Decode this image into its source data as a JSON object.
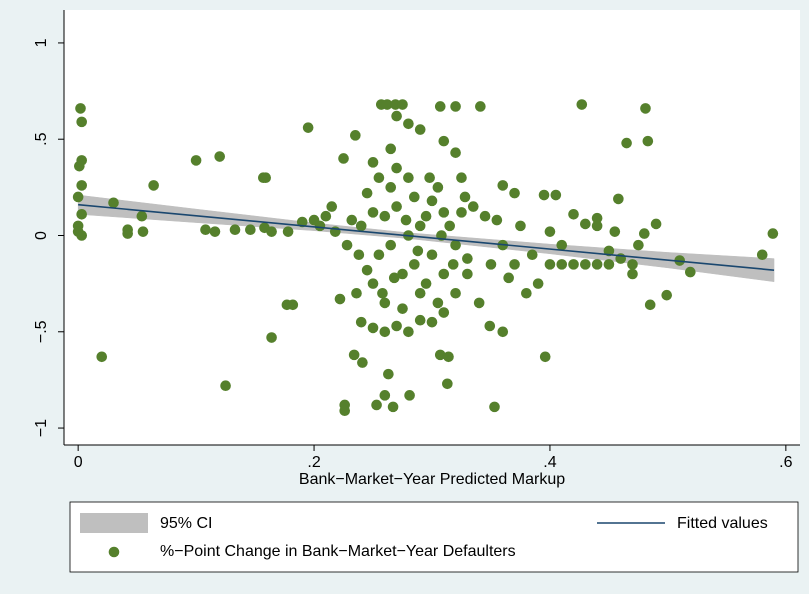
{
  "chart_data": {
    "type": "scatter",
    "x_label": "Bank−Market−Year Predicted Markup",
    "xlim": [
      -0.012,
      0.612
    ],
    "ylim": [
      -1.088,
      1.171
    ],
    "xticks": [
      0,
      {
        "value": 0.2,
        "label": ".2"
      },
      {
        "value": 0.4,
        "label": ".4"
      },
      {
        "value": 0.6,
        "label": ".6"
      }
    ],
    "yticks": [
      {
        "value": -1,
        "label": "−1"
      },
      {
        "value": -0.5,
        "label": "−.5"
      },
      0,
      {
        "value": 0.5,
        "label": ".5"
      },
      1
    ],
    "grid": false,
    "legend": "bottom",
    "series": [
      {
        "name": "95% CI",
        "type": "area",
        "color": "#bfbfbf",
        "x": [
          0,
          0.1,
          0.2,
          0.28,
          0.4,
          0.5,
          0.59
        ],
        "lower": [
          0.11,
          0.067,
          0.025,
          -0.016,
          -0.095,
          -0.168,
          -0.24
        ],
        "upper": [
          0.21,
          0.137,
          0.065,
          0.014,
          -0.045,
          -0.088,
          -0.12
        ]
      },
      {
        "name": "Fitted values",
        "type": "line",
        "color": "#1a476f",
        "x": [
          0,
          0.59
        ],
        "values": [
          0.16,
          -0.18
        ]
      },
      {
        "name": "%−Point Change in Bank−Market−Year Defaulters",
        "type": "scatter",
        "color": "#55802c",
        "x": [
          0.002,
          0.003,
          0.003,
          0.001,
          0.003,
          0,
          0.003,
          0,
          0,
          0.003,
          0.02,
          0.03,
          0.042,
          0.042,
          0.054,
          0.055,
          0.064,
          0.1,
          0.108,
          0.116,
          0.12,
          0.125,
          0.133,
          0.146,
          0.157,
          0.159,
          0.158,
          0.164,
          0.164,
          0.177,
          0.182,
          0.178,
          0.195,
          0.19,
          0.2,
          0.205,
          0.21,
          0.215,
          0.218,
          0.226,
          0.226,
          0.234,
          0.241,
          0.257,
          0.262,
          0.269,
          0.275,
          0.307,
          0.32,
          0.341,
          0.427,
          0.481,
          0.483,
          0.465,
          0.458,
          0.49,
          0.499,
          0.485,
          0.51,
          0.519,
          0.58,
          0.589,
          0.349,
          0.353,
          0.396,
          0.313,
          0.307,
          0.314,
          0.281,
          0.26,
          0.253,
          0.267,
          0.263,
          0.225,
          0.235,
          0.4,
          0.41,
          0.42,
          0.43,
          0.44,
          0.45,
          0.46,
          0.395,
          0.405,
          0.42,
          0.43,
          0.44,
          0.39,
          0.38,
          0.37,
          0.36,
          0.345,
          0.36,
          0.375,
          0.385,
          0.33,
          0.335,
          0.34,
          0.325,
          0.32,
          0.31,
          0.29,
          0.28,
          0.27,
          0.265,
          0.25,
          0.245,
          0.24,
          0.238,
          0.236,
          0.24,
          0.25,
          0.26,
          0.27,
          0.28,
          0.29,
          0.3,
          0.31,
          0.32,
          0.25,
          0.255,
          0.26,
          0.265,
          0.27,
          0.275,
          0.28,
          0.285,
          0.29,
          0.295,
          0.3,
          0.305,
          0.31,
          0.315,
          0.32,
          0.325,
          0.33,
          0.255,
          0.26,
          0.265,
          0.27,
          0.275,
          0.28,
          0.285,
          0.29,
          0.295,
          0.3,
          0.305,
          0.31,
          0.245,
          0.25,
          0.258,
          0.268,
          0.278,
          0.288,
          0.298,
          0.308,
          0.318,
          0.328,
          0.232,
          0.228,
          0.222,
          0.35,
          0.355,
          0.365,
          0.37,
          0.4,
          0.41,
          0.47,
          0.475,
          0.44,
          0.45,
          0.455,
          0.47,
          0.48,
          0.36
        ],
        "values": [
          0.66,
          0.59,
          0.39,
          0.36,
          0.26,
          0.2,
          0.11,
          0.05,
          0.02,
          0,
          -0.63,
          0.17,
          0.03,
          0.01,
          0.1,
          0.02,
          0.26,
          0.39,
          0.03,
          0.02,
          0.41,
          -0.78,
          0.03,
          0.03,
          0.3,
          0.3,
          0.04,
          -0.53,
          0.02,
          -0.36,
          -0.36,
          0.02,
          0.56,
          0.07,
          0.08,
          0.05,
          0.1,
          0.15,
          0.02,
          -0.88,
          -0.91,
          -0.62,
          -0.66,
          0.68,
          0.68,
          0.68,
          0.68,
          0.67,
          0.67,
          0.67,
          0.68,
          0.66,
          0.49,
          0.48,
          0.19,
          0.06,
          -0.31,
          -0.36,
          -0.13,
          -0.19,
          -0.1,
          0.01,
          -0.47,
          -0.89,
          -0.63,
          -0.77,
          -0.62,
          -0.63,
          -0.83,
          -0.83,
          -0.88,
          -0.89,
          -0.72,
          0.4,
          0.52,
          -0.15,
          -0.15,
          -0.15,
          -0.15,
          -0.15,
          -0.15,
          -0.12,
          0.21,
          0.21,
          0.11,
          0.06,
          0.05,
          -0.25,
          -0.3,
          0.22,
          0.26,
          0.1,
          -0.05,
          0.05,
          -0.1,
          -0.2,
          0.15,
          -0.35,
          0.3,
          0.43,
          0.49,
          0.55,
          0.58,
          0.62,
          0.45,
          0.38,
          0.22,
          0.05,
          -0.1,
          -0.3,
          -0.45,
          -0.48,
          -0.5,
          -0.47,
          -0.5,
          -0.44,
          -0.45,
          -0.4,
          -0.3,
          -0.25,
          -0.1,
          0.1,
          0.25,
          0.35,
          -0.2,
          0,
          0.2,
          -0.3,
          0.1,
          -0.1,
          0.25,
          -0.2,
          0.05,
          -0.05,
          0.12,
          -0.12,
          0.3,
          -0.35,
          -0.05,
          0.15,
          -0.38,
          0.3,
          -0.15,
          0.05,
          -0.25,
          0.18,
          -0.35,
          0.12,
          -0.18,
          0.12,
          -0.3,
          -0.22,
          0.08,
          -0.08,
          0.3,
          0,
          -0.15,
          0.2,
          0.08,
          -0.05,
          -0.33,
          -0.15,
          0.08,
          -0.22,
          -0.15,
          0.02,
          -0.05,
          -0.15,
          -0.05,
          0.09,
          -0.08,
          0.02,
          -0.2,
          0.01,
          -0.5
        ]
      }
    ]
  }
}
